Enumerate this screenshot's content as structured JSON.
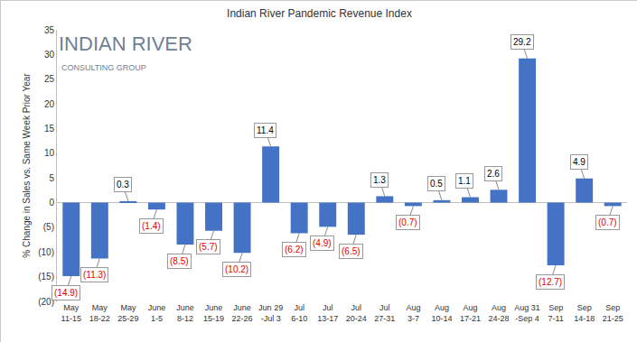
{
  "chart_data": {
    "type": "bar",
    "title": "Indian River Pandemic Revenue Index",
    "y_label": "% Change in Sales vs. Same Week Prior Year",
    "annotations": [
      "INDIAN RIVER",
      "CONSULTING GROUP"
    ],
    "categories": [
      "May\n11-15",
      "May\n18-22",
      "May\n25-29",
      "June\n1-5",
      "June\n8-12",
      "June\n15-19",
      "June\n22-26",
      "Jun 29\n-Jul 3",
      "Jul\n6-10",
      "Jul\n13-17",
      "Jul\n20-24",
      "Jul\n27-31",
      "Aug\n3-7",
      "Aug\n10-14",
      "Aug\n17-21",
      "Aug\n24-28",
      "Aug 31\n-Sep 4",
      "Sep\n7-11",
      "Sep\n14-18",
      "Sep\n21-25"
    ],
    "values": [
      -14.9,
      -11.3,
      0.3,
      -1.4,
      -8.5,
      -5.7,
      -10.2,
      11.4,
      -6.2,
      -4.9,
      -6.5,
      1.3,
      -0.7,
      0.5,
      1.1,
      2.6,
      29.2,
      -12.7,
      4.9,
      -0.7
    ],
    "value_labels": [
      "(14.9)",
      "(11.3)",
      "0.3",
      "(1.4)",
      "(8.5)",
      "(5.7)",
      "(10.2)",
      "11.4",
      "(6.2)",
      "(4.9)",
      "(6.5)",
      "1.3",
      "(0.7)",
      "0.5",
      "1.1",
      "2.6",
      "29.2",
      "(12.7)",
      "4.9",
      "(0.7)"
    ],
    "color": "#4472c4",
    "data_labels": true,
    "grid": false,
    "ylim": [
      -20,
      35
    ],
    "yticks": [
      {
        "value": -20,
        "label": "(20)"
      },
      {
        "value": -15,
        "label": "(15)"
      },
      {
        "value": -10,
        "label": "(10)"
      },
      {
        "value": -5,
        "label": "(5)"
      },
      0,
      5,
      10,
      15,
      20,
      25,
      30,
      35
    ]
  }
}
